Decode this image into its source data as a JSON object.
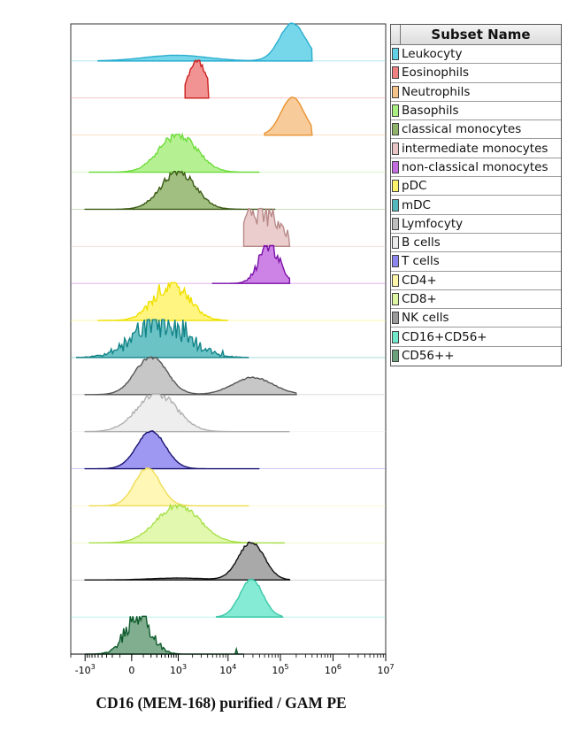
{
  "chart_data": {
    "type": "area",
    "chart_kind": "stacked histogram overlay (flow cytometry)",
    "xlabel": "CD16 (MEM-168) purified / GAM PE",
    "x_scale": "biexponential (logicle)",
    "x_ticks": [
      {
        "base": "-10",
        "exp": "3",
        "value": -1000
      },
      {
        "base": "0",
        "exp": "",
        "value": 0
      },
      {
        "base": "10",
        "exp": "3",
        "value": 1000
      },
      {
        "base": "10",
        "exp": "4",
        "value": 10000
      },
      {
        "base": "10",
        "exp": "5",
        "value": 100000
      },
      {
        "base": "10",
        "exp": "6",
        "value": 1000000
      },
      {
        "base": "10",
        "exp": "7",
        "value": 10000000
      }
    ],
    "xlim": [
      -2000,
      10000000
    ],
    "legend_title": "Subset Name",
    "legend_placement": "right",
    "series": [
      {
        "name": "Leukocyty",
        "fill": "#5fd0e6",
        "stroke": "#2aaed0",
        "peaks": [
          {
            "center": 900,
            "rel_height": 0.15,
            "width": 0.22
          },
          {
            "center": 170000,
            "rel_height": 1.0,
            "width": 0.09
          }
        ],
        "range": [
          -500,
          400000
        ],
        "noise": 0.02
      },
      {
        "name": "Eosinophils",
        "fill": "#f08080",
        "stroke": "#cc1f1f",
        "peaks": [
          {
            "center": 2500,
            "rel_height": 1.0,
            "width": 0.06
          }
        ],
        "range": [
          1400,
          4200
        ],
        "noise": 0.1
      },
      {
        "name": "Neutrophils",
        "fill": "#f7c288",
        "stroke": "#e8922f",
        "peaks": [
          {
            "center": 170000,
            "rel_height": 1.0,
            "width": 0.08
          }
        ],
        "range": [
          50000,
          400000
        ],
        "noise": 0.01
      },
      {
        "name": "Basophils",
        "fill": "#a8ef80",
        "stroke": "#6fdc3c",
        "peaks": [
          {
            "center": 1000,
            "rel_height": 1.0,
            "width": 0.13
          }
        ],
        "range": [
          -800,
          40000
        ],
        "noise": 0.12
      },
      {
        "name": "classical monocytes",
        "fill": "#8fb46a",
        "stroke": "#3a5a14",
        "peaks": [
          {
            "center": 1000,
            "rel_height": 1.0,
            "width": 0.12
          }
        ],
        "range": [
          -1000,
          80000
        ],
        "noise": 0.12
      },
      {
        "name": "intermediate monocytes",
        "fill": "#e8c4c4",
        "stroke": "#b98a8a",
        "peaks": [
          {
            "center": 45000,
            "rel_height": 1.0,
            "width": 0.12
          }
        ],
        "range": [
          20000,
          150000
        ],
        "noise": 0.45
      },
      {
        "name": "non-classical monocytes",
        "fill": "#c46de0",
        "stroke": "#7a10a8",
        "peaks": [
          {
            "center": 60000,
            "rel_height": 1.0,
            "width": 0.07
          }
        ],
        "range": [
          5000,
          150000
        ],
        "noise": 0.25
      },
      {
        "name": "pDC",
        "fill": "#fff36a",
        "stroke": "#f0e000",
        "peaks": [
          {
            "center": 700,
            "rel_height": 1.0,
            "width": 0.12
          }
        ],
        "range": [
          -500,
          10000
        ],
        "noise": 0.25
      },
      {
        "name": "mDC",
        "fill": "#52b8bc",
        "stroke": "#128488",
        "peaks": [
          {
            "center": 400,
            "rel_height": 1.0,
            "width": 0.18
          }
        ],
        "range": [
          -1500,
          25000
        ],
        "noise": 0.5
      },
      {
        "name": "Lymfocyty",
        "fill": "#bdbdbd",
        "stroke": "#555555",
        "peaks": [
          {
            "center": 200,
            "rel_height": 1.0,
            "width": 0.11
          },
          {
            "center": 30000,
            "rel_height": 0.45,
            "width": 0.14
          }
        ],
        "range": [
          -1000,
          200000
        ],
        "noise": 0.05
      },
      {
        "name": "B cells",
        "fill": "#ebebeb",
        "stroke": "#b0b0b0",
        "peaks": [
          {
            "center": 300,
            "rel_height": 1.0,
            "width": 0.14
          }
        ],
        "range": [
          -1000,
          150000
        ],
        "noise": 0.1
      },
      {
        "name": "T cells",
        "fill": "#8e86f0",
        "stroke": "#1a1470",
        "peaks": [
          {
            "center": 200,
            "rel_height": 1.0,
            "width": 0.1
          }
        ],
        "range": [
          -1000,
          40000
        ],
        "noise": 0.03
      },
      {
        "name": "CD4+",
        "fill": "#fff6a8",
        "stroke": "#eedd55",
        "peaks": [
          {
            "center": 150,
            "rel_height": 1.0,
            "width": 0.09
          }
        ],
        "range": [
          -800,
          25000
        ],
        "noise": 0.03
      },
      {
        "name": "CD8+",
        "fill": "#ddf7a0",
        "stroke": "#a8e04a",
        "peaks": [
          {
            "center": 1000,
            "rel_height": 1.0,
            "width": 0.15
          }
        ],
        "range": [
          -800,
          120000
        ],
        "noise": 0.08
      },
      {
        "name": "NK cells",
        "fill": "#9a9a9a",
        "stroke": "#111111",
        "peaks": [
          {
            "center": 28000,
            "rel_height": 1.0,
            "width": 0.09
          },
          {
            "center": 1000,
            "rel_height": 0.05,
            "width": 0.2
          }
        ],
        "range": [
          -1000,
          150000
        ],
        "noise": 0.04
      },
      {
        "name": "CD16+CD56+",
        "fill": "#70e8cc",
        "stroke": "#3cc8a8",
        "peaks": [
          {
            "center": 28000,
            "rel_height": 1.0,
            "width": 0.08
          }
        ],
        "range": [
          6000,
          110000
        ],
        "noise": 0.04
      },
      {
        "name": "CD56++",
        "fill": "#6aa07a",
        "stroke": "#0e5a2c",
        "peaks": [
          {
            "center": 50,
            "rel_height": 1.0,
            "width": 0.09
          }
        ],
        "range": [
          -1000,
          20000
        ],
        "noise": 0.35
      }
    ]
  }
}
